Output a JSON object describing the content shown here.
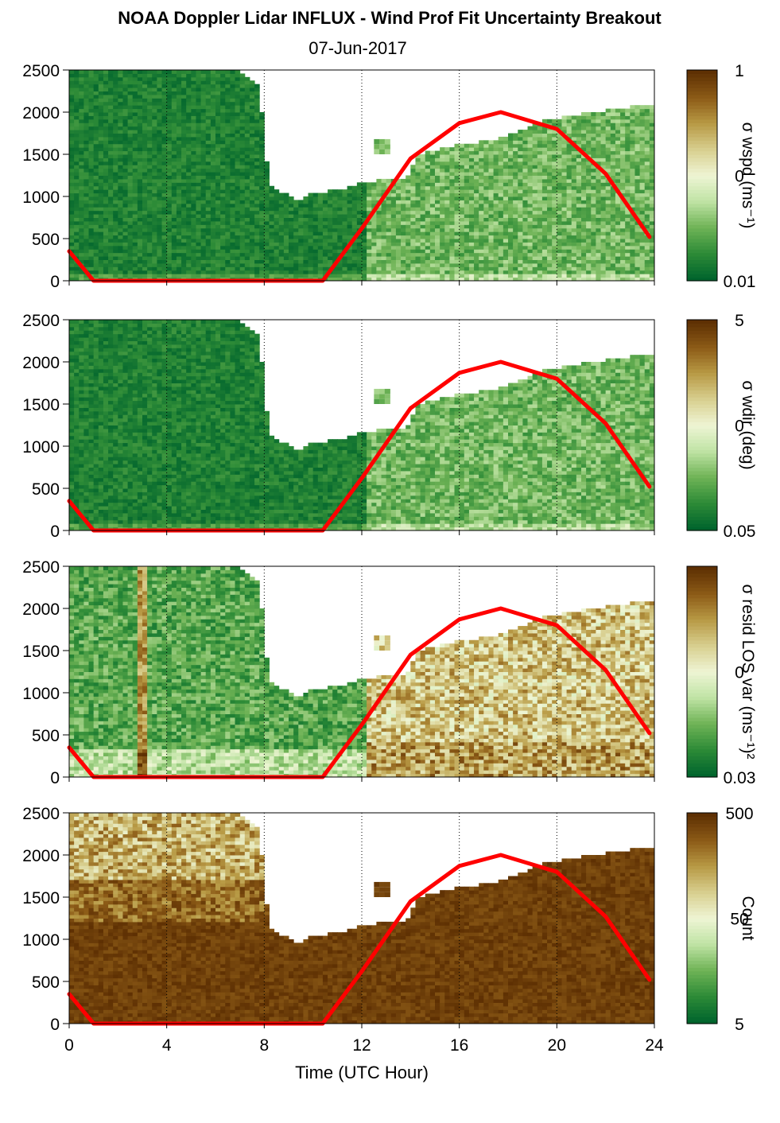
{
  "figure": {
    "title": "NOAA Doppler Lidar INFLUX - Wind Prof Fit Uncertainty Breakout",
    "subtitle": "07-Jun-2017",
    "xlabel": "Time (UTC Hour)",
    "x_ticks": [
      "0",
      "4",
      "8",
      "12",
      "16",
      "20",
      "24"
    ],
    "y_ticks": [
      "0",
      "500",
      "1000",
      "1500",
      "2000",
      "2500"
    ],
    "colors": {
      "overlay_curve": "#ff0000",
      "colormap": [
        "#00642d",
        "#2d8b37",
        "#6fb356",
        "#bfe3a4",
        "#eef5d4",
        "#d8cf8f",
        "#b89a45",
        "#8c5b17",
        "#5e3003"
      ]
    }
  },
  "chart_data": [
    {
      "type": "heatmap",
      "colorbar_label": "σ wspd (ms⁻¹)",
      "colorbar_ticks": [
        "1",
        "0",
        "0.01"
      ],
      "colorscale": "log",
      "xlim": [
        0,
        24
      ],
      "ylim": [
        0,
        2500
      ],
      "level": "low",
      "overlay_curve_x": [
        0,
        1,
        10.4,
        12,
        14,
        16,
        17.7,
        20,
        22,
        23.8
      ],
      "overlay_curve_y": [
        350,
        0,
        0,
        620,
        1450,
        1870,
        2000,
        1800,
        1270,
        520
      ]
    },
    {
      "type": "heatmap",
      "colorbar_label": "σ wdir (deg)",
      "colorbar_ticks": [
        "5",
        "0",
        "0.05"
      ],
      "colorscale": "log",
      "xlim": [
        0,
        24
      ],
      "ylim": [
        0,
        2500
      ],
      "level": "low",
      "overlay_curve_x": [
        0,
        1,
        10.4,
        12,
        14,
        16,
        17.7,
        20,
        22,
        23.8
      ],
      "overlay_curve_y": [
        350,
        0,
        0,
        620,
        1450,
        1870,
        2000,
        1800,
        1270,
        520
      ]
    },
    {
      "type": "heatmap",
      "colorbar_label": "σ resid LOS var (ms⁻¹)²",
      "colorbar_ticks": [
        "0",
        "0.03"
      ],
      "colorscale": "log",
      "xlim": [
        0,
        24
      ],
      "ylim": [
        0,
        2500
      ],
      "level": "mixed",
      "overlay_curve_x": [
        0,
        1,
        10.4,
        12,
        14,
        16,
        17.7,
        20,
        22,
        23.8
      ],
      "overlay_curve_y": [
        350,
        0,
        0,
        620,
        1450,
        1870,
        2000,
        1800,
        1270,
        520
      ]
    },
    {
      "type": "heatmap",
      "colorbar_label": "Count",
      "colorbar_ticks": [
        "500",
        "50",
        "5"
      ],
      "colorscale": "log",
      "xlim": [
        0,
        24
      ],
      "ylim": [
        0,
        2500
      ],
      "level": "high",
      "overlay_curve_x": [
        0,
        1,
        10.4,
        12,
        14,
        16,
        17.7,
        20,
        22,
        23.8
      ],
      "overlay_curve_y": [
        350,
        0,
        0,
        620,
        1450,
        1870,
        2000,
        1800,
        1270,
        520
      ]
    }
  ]
}
